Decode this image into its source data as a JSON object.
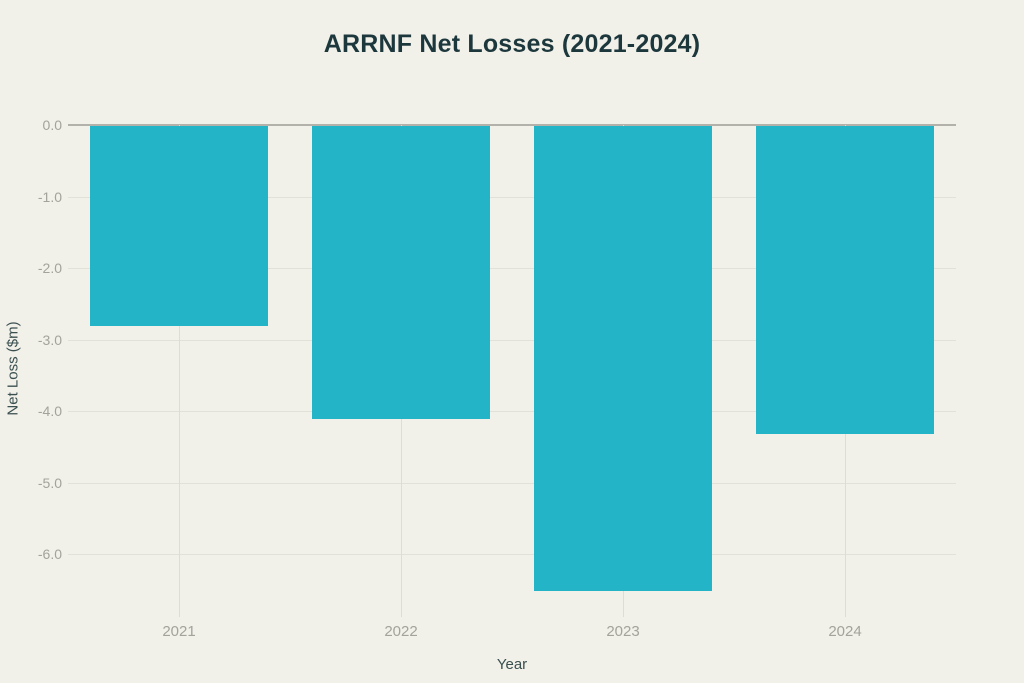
{
  "chart_data": {
    "type": "bar",
    "title": "ARRNF Net Losses (2021-2024)",
    "xlabel": "Year",
    "ylabel": "Net Loss ($m)",
    "categories": [
      "2021",
      "2022",
      "2023",
      "2024"
    ],
    "values": [
      -2.8,
      -4.1,
      -6.5,
      -4.3
    ],
    "ylim": [
      0,
      -6.875
    ],
    "yticks": [
      0,
      -1,
      -2,
      -3,
      -4,
      -5,
      -6
    ],
    "ytick_labels": [
      "0.0",
      "-1.0",
      "-2.0",
      "-3.0",
      "-4.0",
      "-5.0",
      "-6.0"
    ],
    "grid": true,
    "legend": "none",
    "bar_width_fraction": 0.8
  },
  "colors": {
    "background": "#f1f0e9",
    "bar": "#24b4c8",
    "title": "#1d383d",
    "axis_title": "#3a4f50",
    "tick_label": "#a3a29b",
    "zero_line": "#b3b2aa",
    "h_gridline": "#e2e1d8",
    "v_gridline": "#deddd3"
  }
}
